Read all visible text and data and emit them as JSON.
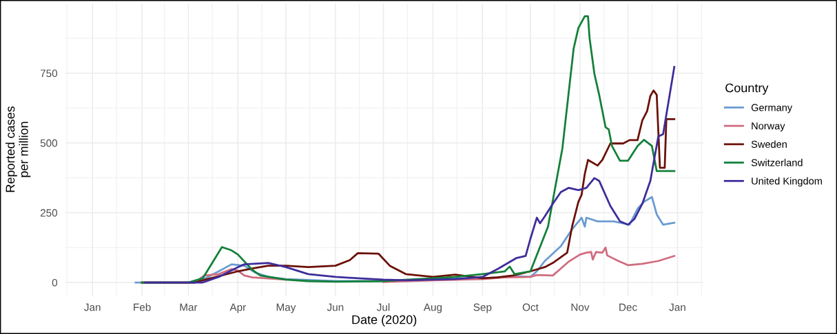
{
  "chart_data": {
    "type": "line",
    "xlabel": "Date (2020)",
    "ylabel": "Reported cases\nper million",
    "legend_title": "Country",
    "legend": "right",
    "grid": true,
    "line_style": "solid",
    "marker": "none",
    "xlim": [
      "2019-12-15",
      "2021-01-17"
    ],
    "xticks": [
      {
        "value": "2019-12-16",
        "label": null
      },
      {
        "value": "2020-01-01",
        "label": "Jan"
      },
      {
        "value": "2020-01-16",
        "label": null
      },
      {
        "value": "2020-02-01",
        "label": "Feb"
      },
      {
        "value": "2020-02-15",
        "label": null
      },
      {
        "value": "2020-03-01",
        "label": "Mar"
      },
      {
        "value": "2020-03-16",
        "label": null
      },
      {
        "value": "2020-04-01",
        "label": "Apr"
      },
      {
        "value": "2020-04-16",
        "label": null
      },
      {
        "value": "2020-05-01",
        "label": "May"
      },
      {
        "value": "2020-05-16",
        "label": null
      },
      {
        "value": "2020-06-01",
        "label": "Jun"
      },
      {
        "value": "2020-06-16",
        "label": null
      },
      {
        "value": "2020-07-01",
        "label": "Jul"
      },
      {
        "value": "2020-07-16",
        "label": null
      },
      {
        "value": "2020-08-01",
        "label": "Aug"
      },
      {
        "value": "2020-08-16",
        "label": null
      },
      {
        "value": "2020-09-01",
        "label": "Sep"
      },
      {
        "value": "2020-09-16",
        "label": null
      },
      {
        "value": "2020-10-01",
        "label": "Oct"
      },
      {
        "value": "2020-10-16",
        "label": null
      },
      {
        "value": "2020-11-01",
        "label": "Nov"
      },
      {
        "value": "2020-11-16",
        "label": null
      },
      {
        "value": "2020-12-01",
        "label": "Dec"
      },
      {
        "value": "2020-12-16",
        "label": null
      },
      {
        "value": "2021-01-01",
        "label": "Jan"
      },
      {
        "value": "2021-01-16",
        "label": null
      }
    ],
    "ylim": [
      -47,
      1000
    ],
    "yticks": [
      0,
      {
        "value": 125,
        "label": null
      },
      250,
      {
        "value": 375,
        "label": null
      },
      500,
      {
        "value": 625,
        "label": null
      },
      750,
      {
        "value": 875,
        "label": null
      }
    ],
    "series": [
      {
        "name": "Germany",
        "color": "#6a9bd1",
        "x": [
          "2020-01-28",
          "2020-03-01",
          "2020-03-10",
          "2020-03-20",
          "2020-03-28",
          "2020-04-05",
          "2020-04-12",
          "2020-04-20",
          "2020-05-01",
          "2020-06-01",
          "2020-07-01",
          "2020-08-01",
          "2020-08-15",
          "2020-09-01",
          "2020-09-25",
          "2020-10-01",
          "2020-10-05",
          "2020-10-10",
          "2020-10-20",
          "2020-10-27",
          "2020-11-02",
          "2020-11-04",
          "2020-11-05",
          "2020-11-12",
          "2020-11-22",
          "2020-12-02",
          "2020-12-07",
          "2020-12-11",
          "2020-12-16",
          "2020-12-19",
          "2020-12-23",
          "2020-12-30"
        ],
        "values": [
          0,
          0,
          10,
          40,
          65,
          60,
          35,
          20,
          12,
          5,
          5,
          10,
          15,
          15,
          22,
          20,
          40,
          77,
          130,
          190,
          232,
          200,
          232,
          219,
          219,
          207,
          264,
          289,
          306,
          244,
          207,
          214
        ]
      },
      {
        "name": "Norway",
        "color": "#d06c7f",
        "x": [
          "2020-02-01",
          "2020-03-05",
          "2020-03-11",
          "2020-03-20",
          "2020-03-28",
          "2020-04-01",
          "2020-04-05",
          "2020-04-10",
          "2020-05-01",
          "2020-06-01",
          "2020-07-01",
          "2020-08-01",
          "2020-09-01",
          "2020-09-15",
          "2020-10-01",
          "2020-10-05",
          "2020-10-15",
          "2020-10-20",
          "2020-10-25",
          "2020-11-01",
          "2020-11-05",
          "2020-11-08",
          "2020-11-09",
          "2020-11-11",
          "2020-11-15",
          "2020-11-17",
          "2020-11-18",
          "2020-11-25",
          "2020-12-01",
          "2020-12-10",
          "2020-12-20",
          "2020-12-30"
        ],
        "values": [
          0,
          0,
          25,
          30,
          48,
          42,
          25,
          18,
          10,
          null,
          2,
          8,
          12,
          18,
          20,
          27,
          25,
          50,
          75,
          100,
          107,
          109,
          82,
          109,
          107,
          125,
          97,
          77,
          62,
          67,
          77,
          95
        ]
      },
      {
        "name": "Sweden",
        "color": "#6b1007",
        "x": [
          "2020-02-01",
          "2020-03-05",
          "2020-03-15",
          "2020-04-01",
          "2020-04-10",
          "2020-04-20",
          "2020-05-01",
          "2020-05-15",
          "2020-06-01",
          "2020-06-10",
          "2020-06-15",
          "2020-06-28",
          "2020-07-05",
          "2020-07-15",
          "2020-08-01",
          "2020-08-15",
          "2020-09-01",
          "2020-09-10",
          "2020-09-20",
          "2020-10-01",
          "2020-10-10",
          "2020-10-15",
          "2020-10-24",
          "2020-10-27",
          "2020-10-31",
          "2020-11-02",
          "2020-11-04",
          "2020-11-06",
          "2020-11-12",
          "2020-11-15",
          "2020-11-20",
          "2020-11-28",
          "2020-12-02",
          "2020-12-07",
          "2020-12-10",
          "2020-12-13",
          "2020-12-15",
          "2020-12-17",
          "2020-12-19",
          "2020-12-21",
          "2020-12-24",
          "2020-12-25",
          "2020-12-30"
        ],
        "values": [
          0,
          0,
          15,
          40,
          50,
          60,
          60,
          55,
          60,
          80,
          105,
          103,
          60,
          30,
          20,
          28,
          15,
          18,
          25,
          40,
          55,
          70,
          107,
          199,
          289,
          314,
          389,
          439,
          419,
          439,
          498,
          498,
          510,
          510,
          581,
          614,
          668,
          688,
          672,
          411,
          411,
          585,
          585
        ]
      },
      {
        "name": "Switzerland",
        "color": "#13803a",
        "x": [
          "2020-02-01",
          "2020-03-01",
          "2020-03-10",
          "2020-03-22",
          "2020-03-28",
          "2020-04-01",
          "2020-04-10",
          "2020-04-15",
          "2020-05-01",
          "2020-05-15",
          "2020-06-01",
          "2020-07-01",
          "2020-08-01",
          "2020-08-15",
          "2020-09-01",
          "2020-09-15",
          "2020-09-18",
          "2020-09-21",
          "2020-10-01",
          "2020-10-12",
          "2020-10-21",
          "2020-10-28",
          "2020-10-31",
          "2020-11-04",
          "2020-11-06",
          "2020-11-07",
          "2020-11-10",
          "2020-11-13",
          "2020-11-17",
          "2020-11-19",
          "2020-11-21",
          "2020-11-26",
          "2020-12-01",
          "2020-12-07",
          "2020-12-11",
          "2020-12-16",
          "2020-12-19",
          "2020-12-30"
        ],
        "values": [
          0,
          0,
          15,
          127,
          115,
          100,
          45,
          25,
          10,
          5,
          3,
          5,
          15,
          20,
          30,
          40,
          57,
          30,
          40,
          200,
          481,
          837,
          912,
          954,
          954,
          875,
          748,
          672,
          556,
          548,
          489,
          436,
          436,
          489,
          511,
          489,
          399,
          399
        ]
      },
      {
        "name": "United Kingdom",
        "color": "#3d2d9a",
        "x": [
          "2020-02-03",
          "2020-03-10",
          "2020-03-20",
          "2020-04-01",
          "2020-04-05",
          "2020-04-20",
          "2020-05-01",
          "2020-05-15",
          "2020-06-01",
          "2020-06-15",
          "2020-07-01",
          "2020-07-15",
          "2020-08-01",
          "2020-08-15",
          "2020-09-01",
          "2020-09-11",
          "2020-09-22",
          "2020-09-28",
          "2020-10-01",
          "2020-10-05",
          "2020-10-07",
          "2020-10-10",
          "2020-10-15",
          "2020-10-20",
          "2020-10-25",
          "2020-10-31",
          "2020-11-05",
          "2020-11-10",
          "2020-11-13",
          "2020-11-20",
          "2020-11-26",
          "2020-12-01",
          "2020-12-05",
          "2020-12-10",
          "2020-12-15",
          "2020-12-20",
          "2020-12-23",
          "2020-12-30"
        ],
        "values": [
          0,
          0,
          20,
          55,
          65,
          70,
          55,
          30,
          20,
          15,
          10,
          8,
          10,
          12,
          20,
          50,
          87,
          95,
          157,
          232,
          212,
          237,
          282,
          324,
          339,
          331,
          339,
          374,
          364,
          274,
          219,
          207,
          227,
          282,
          364,
          523,
          531,
          772
        ]
      }
    ]
  }
}
